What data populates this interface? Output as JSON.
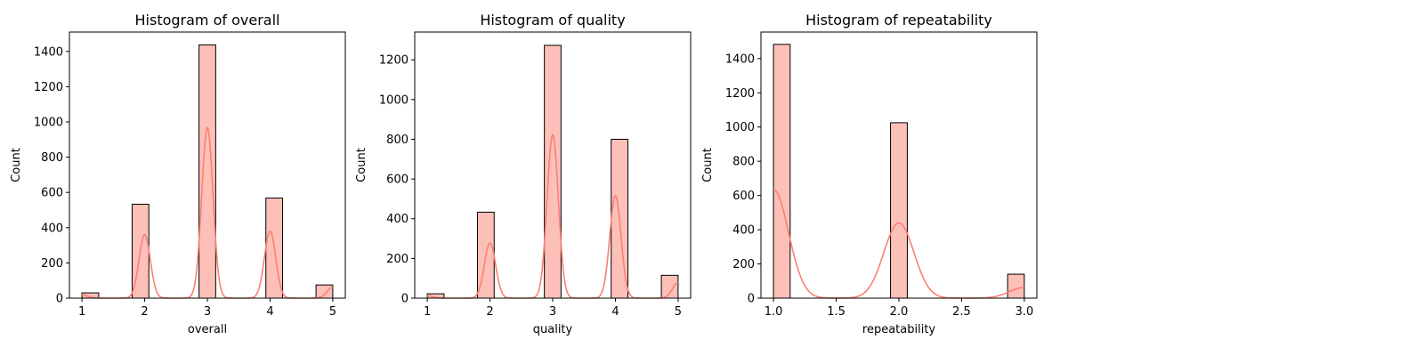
{
  "colors": {
    "bar_fill": "#fcc0b8",
    "bar_edge": "#000000",
    "kde_line": "#fa8072"
  },
  "chart_data": [
    {
      "type": "bar",
      "title": "Histogram of overall",
      "xlabel": "overall",
      "ylabel": "Count",
      "xlim": [
        0.8,
        5.2
      ],
      "ylim": [
        0,
        1510
      ],
      "xticks": [
        1,
        2,
        3,
        4,
        5
      ],
      "xtick_labels": [
        "1",
        "2",
        "3",
        "4",
        "5"
      ],
      "yticks": [
        0,
        200,
        400,
        600,
        800,
        1000,
        1200,
        1400
      ],
      "bin_width": 0.267,
      "bins": [
        {
          "x0": 1.0,
          "x1": 1.267,
          "count": 30
        },
        {
          "x0": 1.8,
          "x1": 2.067,
          "count": 533
        },
        {
          "x0": 2.867,
          "x1": 3.133,
          "count": 1437
        },
        {
          "x0": 3.933,
          "x1": 4.2,
          "count": 568
        },
        {
          "x0": 4.733,
          "x1": 5.0,
          "count": 75
        }
      ],
      "kde": {
        "bandwidth": 0.09,
        "peaks": [
          [
            1,
            18
          ],
          [
            2,
            360
          ],
          [
            3,
            968
          ],
          [
            4,
            380
          ],
          [
            5,
            62
          ]
        ]
      }
    },
    {
      "type": "bar",
      "title": "Histogram of quality",
      "xlabel": "quality",
      "ylabel": "Count",
      "xlim": [
        0.8,
        5.2
      ],
      "ylim": [
        0,
        1340
      ],
      "xticks": [
        1,
        2,
        3,
        4,
        5
      ],
      "xtick_labels": [
        "1",
        "2",
        "3",
        "4",
        "5"
      ],
      "yticks": [
        0,
        200,
        400,
        600,
        800,
        1000,
        1200
      ],
      "bin_width": 0.267,
      "bins": [
        {
          "x0": 1.0,
          "x1": 1.267,
          "count": 22
        },
        {
          "x0": 1.8,
          "x1": 2.067,
          "count": 433
        },
        {
          "x0": 2.867,
          "x1": 3.133,
          "count": 1273
        },
        {
          "x0": 3.933,
          "x1": 4.2,
          "count": 800
        },
        {
          "x0": 4.733,
          "x1": 5.0,
          "count": 115
        }
      ],
      "kde": {
        "bandwidth": 0.09,
        "peaks": [
          [
            1,
            12
          ],
          [
            2,
            278
          ],
          [
            3,
            823
          ],
          [
            4,
            516
          ],
          [
            5,
            78
          ]
        ]
      }
    },
    {
      "type": "bar",
      "title": "Histogram of repeatability",
      "xlabel": "repeatability",
      "ylabel": "Count",
      "xlim": [
        0.9,
        3.1
      ],
      "ylim": [
        0,
        1555
      ],
      "xticks": [
        1.0,
        1.5,
        2.0,
        2.5,
        3.0
      ],
      "xtick_labels": [
        "1.0",
        "1.5",
        "2.0",
        "2.5",
        "3.0"
      ],
      "yticks": [
        0,
        200,
        400,
        600,
        800,
        1000,
        1200,
        1400
      ],
      "bin_width": 0.133,
      "bins": [
        {
          "x0": 1.0,
          "x1": 1.133,
          "count": 1483
        },
        {
          "x0": 1.933,
          "x1": 2.067,
          "count": 1025
        },
        {
          "x0": 2.867,
          "x1": 3.0,
          "count": 140
        }
      ],
      "kde": {
        "bandwidth": 0.12,
        "peaks": [
          [
            1,
            635
          ],
          [
            2,
            440
          ],
          [
            3,
            62
          ]
        ]
      }
    }
  ]
}
